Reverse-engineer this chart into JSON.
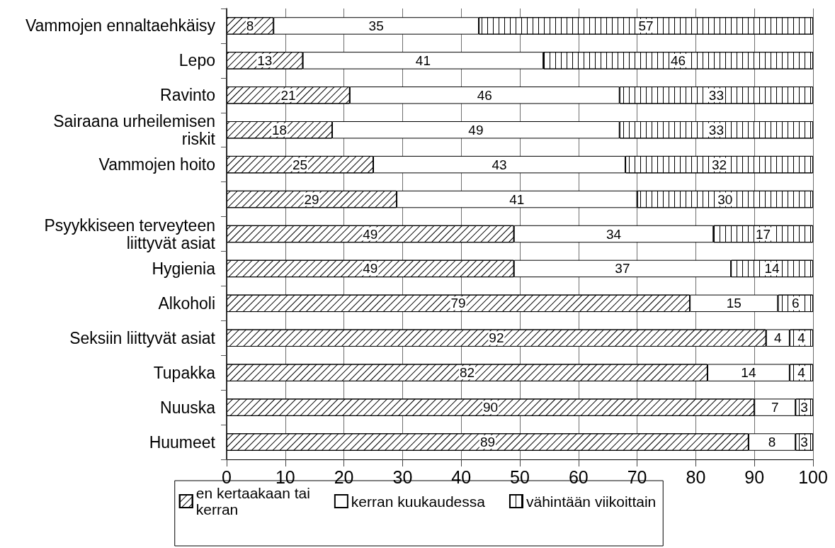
{
  "chart_data": {
    "type": "bar",
    "orientation": "horizontal",
    "stacked": true,
    "categories": [
      "Vammojen ennaltaehkäisy",
      "Lepo",
      "Ravinto",
      "Sairaana urheilemisen riskit",
      "Vammojen hoito",
      null,
      "Psyykkiseen terveyteen liittyvät asiat",
      "Hygienia",
      "Alkoholi",
      "Seksiin liittyvät asiat",
      "Tupakka",
      "Nuuska",
      "Huumeet"
    ],
    "series": [
      {
        "name": "en kertaakaan tai kerran",
        "color": "#ffffff",
        "values": [
          8,
          13,
          21,
          18,
          25,
          29,
          49,
          49,
          79,
          92,
          82,
          90,
          89
        ]
      },
      {
        "name": "kerran kuukaudessa",
        "color": "#ffffff",
        "values": [
          35,
          41,
          46,
          49,
          43,
          41,
          34,
          37,
          15,
          4,
          14,
          7,
          8
        ]
      },
      {
        "name": "vähintään viikoittain",
        "color": "#ffffff",
        "values": [
          57,
          46,
          33,
          33,
          32,
          30,
          17,
          14,
          6,
          4,
          4,
          3,
          3
        ]
      }
    ],
    "xlim": [
      0,
      100
    ],
    "xticks": [
      0,
      10,
      20,
      30,
      40,
      50,
      60,
      70,
      80,
      90,
      100
    ],
    "grid": "x",
    "legend": "bottom",
    "data_labels": true
  }
}
